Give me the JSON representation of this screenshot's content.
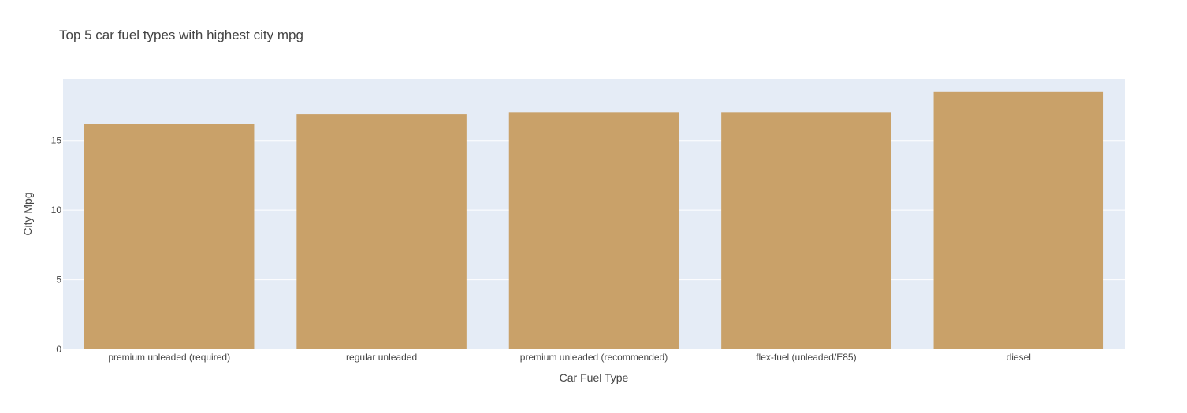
{
  "chart_data": {
    "type": "bar",
    "title": "Top 5 car fuel types with highest city mpg",
    "xlabel": "Car Fuel Type",
    "ylabel": "City Mpg",
    "categories": [
      "premium unleaded (required)",
      "regular unleaded",
      "premium unleaded (recommended)",
      "flex-fuel (unleaded/E85)",
      "diesel"
    ],
    "values": [
      16.2,
      16.9,
      17.0,
      17.0,
      18.5
    ],
    "ylim": [
      0,
      19.45
    ],
    "yticks": [
      0,
      5,
      10,
      15
    ],
    "ytick_labels": [
      "0",
      "5",
      "10",
      "15"
    ],
    "grid": true,
    "legend": "none",
    "colors": {
      "bar": "#c9a169",
      "plot_background": "#e5ecf6",
      "gridline": "#ffffff",
      "text": "#444444"
    }
  }
}
